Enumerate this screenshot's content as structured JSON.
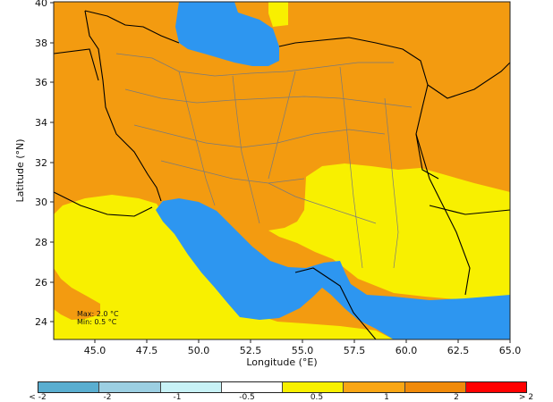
{
  "map": {
    "ylabel": "Latitude (°N)",
    "xlabel": "Longitude (°E)",
    "x_ticks": [
      "45.0",
      "47.5",
      "50.0",
      "52.5",
      "55.0",
      "57.5",
      "60.0",
      "62.5",
      "65.0"
    ],
    "y_ticks": [
      "40",
      "38",
      "36",
      "34",
      "32",
      "30",
      "28",
      "26",
      "24"
    ],
    "max_text": "Max: 2.0 °C",
    "min_text": "Min: 0.5 °C",
    "colors": {
      "sea": "#2d96f0",
      "orange": "#f39b10",
      "yellow": "#f8f000",
      "border": "#000000",
      "province": "#7a7a7a"
    }
  },
  "colorbar": {
    "colors": [
      "#5aaed0",
      "#9ccfe2",
      "#c8f2f6",
      "#ffffff",
      "#f8f000",
      "#f9a615",
      "#f08a0a",
      "#ff0000"
    ],
    "labels": [
      "< -2",
      "-2",
      "-1",
      "-0.5",
      "0.5",
      "1",
      "2",
      "> 2"
    ]
  }
}
